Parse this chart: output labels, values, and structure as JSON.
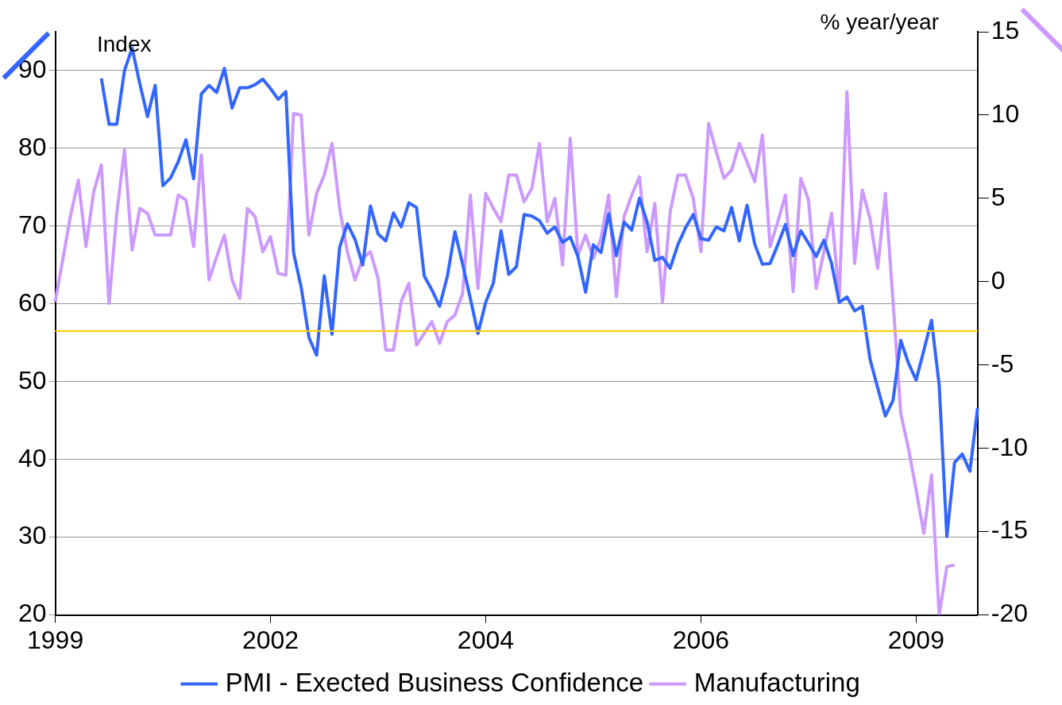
{
  "chart_data": {
    "type": "line",
    "ylabel": "Index",
    "y2label": "% year/year",
    "categories": [
      "1999",
      null,
      null,
      null,
      null,
      null,
      null,
      null,
      null,
      null,
      null,
      null,
      null,
      null,
      null,
      null,
      null,
      null,
      null,
      null,
      null,
      null,
      null,
      null,
      null,
      null,
      null,
      null,
      "2002",
      null,
      null,
      null,
      null,
      null,
      null,
      null,
      null,
      null,
      null,
      null,
      null,
      null,
      null,
      null,
      null,
      null,
      null,
      null,
      null,
      null,
      null,
      null,
      null,
      null,
      null,
      null,
      "2004",
      null,
      null,
      null,
      null,
      null,
      null,
      null,
      null,
      null,
      null,
      null,
      null,
      null,
      null,
      null,
      null,
      null,
      null,
      null,
      null,
      null,
      null,
      null,
      null,
      null,
      null,
      null,
      "2006",
      null,
      null,
      null,
      null,
      null,
      null,
      null,
      null,
      null,
      null,
      null,
      null,
      null,
      null,
      null,
      null,
      null,
      null,
      null,
      null,
      null,
      null,
      null,
      null,
      null,
      null,
      null,
      "2009",
      null,
      null,
      null,
      null,
      null,
      null,
      null,
      null
    ],
    "series": [
      {
        "name": "PMI - Exected Business Confidence",
        "color": "#3366ff",
        "axis": "y",
        "values": [
          null,
          null,
          null,
          null,
          null,
          null,
          89.0,
          83.1,
          83.1,
          90.0,
          92.9,
          88.3,
          84.1,
          88.1,
          75.2,
          76.2,
          78.3,
          81.1,
          76.1,
          87.0,
          88.1,
          87.2,
          90.3,
          85.2,
          87.8,
          87.8,
          88.2,
          88.9,
          87.7,
          86.3,
          87.3,
          66.6,
          62.1,
          55.7,
          53.4,
          63.6,
          56.1,
          67.3,
          70.3,
          68.3,
          65.0,
          72.6,
          69.0,
          68.1,
          71.7,
          69.9,
          73.0,
          72.4,
          63.6,
          61.8,
          59.7,
          63.5,
          69.3,
          65.1,
          60.7,
          56.2,
          60.2,
          62.7,
          69.4,
          63.8,
          64.8,
          71.5,
          71.3,
          70.7,
          69.1,
          69.9,
          67.9,
          68.6,
          66.1,
          61.5,
          67.6,
          66.6,
          71.6,
          66.2,
          70.5,
          69.5,
          73.6,
          70.5,
          65.6,
          66.0,
          64.6,
          67.6,
          69.8,
          71.5,
          68.4,
          68.2,
          69.9,
          69.4,
          72.4,
          68.1,
          72.7,
          67.7,
          65.1,
          65.2,
          67.6,
          70.2,
          66.2,
          69.4,
          67.8,
          66.1,
          68.2,
          65.2,
          60.2,
          60.9,
          59.1,
          59.7,
          52.9,
          49.2,
          45.6,
          47.6,
          55.3,
          52.4,
          50.2,
          54.0,
          57.9,
          49.6,
          30.1,
          39.6,
          40.7,
          38.5,
          46.6
        ]
      },
      {
        "name": "Manufacturing",
        "color": "#cc99ff",
        "axis": "y2",
        "values": [
          -1.2,
          1.4,
          4.0,
          6.1,
          2.1,
          5.4,
          7.0,
          -1.3,
          4.1,
          7.9,
          1.9,
          4.4,
          4.1,
          2.8,
          2.8,
          2.8,
          5.2,
          4.9,
          2.1,
          7.6,
          0.1,
          1.5,
          2.8,
          0.1,
          -1.0,
          4.4,
          3.9,
          1.8,
          2.7,
          0.5,
          0.4,
          10.1,
          10.0,
          2.8,
          5.3,
          6.4,
          8.3,
          4.4,
          1.8,
          0.1,
          1.4,
          1.8,
          0.2,
          -4.1,
          -4.1,
          -1.2,
          -0.1,
          -3.8,
          -3.1,
          -2.4,
          -3.7,
          -2.4,
          -2.0,
          -0.7,
          5.2,
          -0.4,
          5.3,
          4.4,
          3.6,
          6.4,
          6.4,
          4.8,
          5.6,
          8.3,
          3.6,
          5.0,
          1.0,
          8.6,
          1.6,
          2.8,
          1.4,
          2.6,
          5.2,
          -0.9,
          3.9,
          5.2,
          6.3,
          1.8,
          4.7,
          -1.2,
          4.2,
          6.4,
          6.4,
          5.0,
          1.8,
          9.5,
          7.8,
          6.2,
          6.7,
          8.3,
          7.2,
          6.0,
          8.8,
          2.1,
          3.6,
          5.2,
          -0.6,
          6.2,
          4.9,
          -0.4,
          1.8,
          4.1,
          -0.9,
          11.4,
          1.1,
          5.5,
          3.8,
          0.8,
          5.3,
          -1.2,
          -7.9,
          -10.0,
          -12.5,
          -15.1,
          -11.6,
          -20.0,
          -17.1,
          -17.0,
          null,
          null,
          null
        ]
      }
    ],
    "ylim": [
      20,
      95
    ],
    "yticks": [
      20,
      30,
      40,
      50,
      60,
      70,
      80,
      90
    ],
    "y2lim": [
      -20,
      15
    ],
    "y2ticks": [
      -20,
      -15,
      -10,
      -5,
      0,
      5,
      10,
      15
    ],
    "ref_lines": [
      {
        "axis": "y",
        "value": 56.5,
        "color": "#ffcc00"
      }
    ],
    "grid": "y",
    "legend": "bottom",
    "marker": "none",
    "line_style": "solid"
  }
}
